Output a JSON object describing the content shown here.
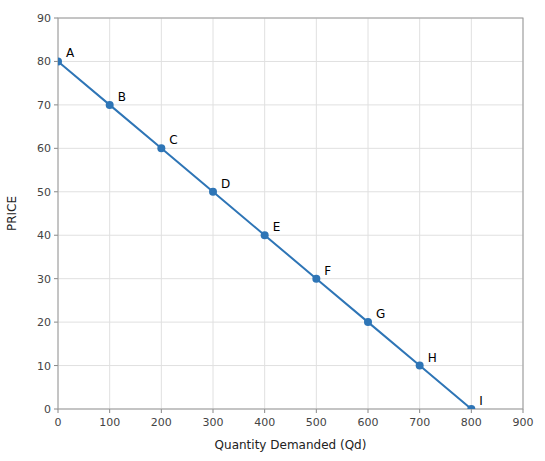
{
  "chart_data": {
    "type": "line",
    "x_label": "Quantity Demanded (Qd)",
    "y_label": "PRICE",
    "x": [
      0,
      100,
      200,
      300,
      400,
      500,
      600,
      700,
      800
    ],
    "values": [
      80,
      70,
      60,
      50,
      40,
      30,
      20,
      10,
      0
    ],
    "annotations": [
      "A",
      "B",
      "C",
      "D",
      "E",
      "F",
      "G",
      "H",
      "I"
    ],
    "color": "#2E75B6",
    "marker": "circle",
    "xlim": [
      0,
      900
    ],
    "ylim": [
      0,
      90
    ],
    "xticks": [
      0,
      100,
      200,
      300,
      400,
      500,
      600,
      700,
      800,
      900
    ],
    "yticks": [
      0,
      10,
      20,
      30,
      40,
      50,
      60,
      70,
      80,
      90
    ],
    "grid": true
  }
}
